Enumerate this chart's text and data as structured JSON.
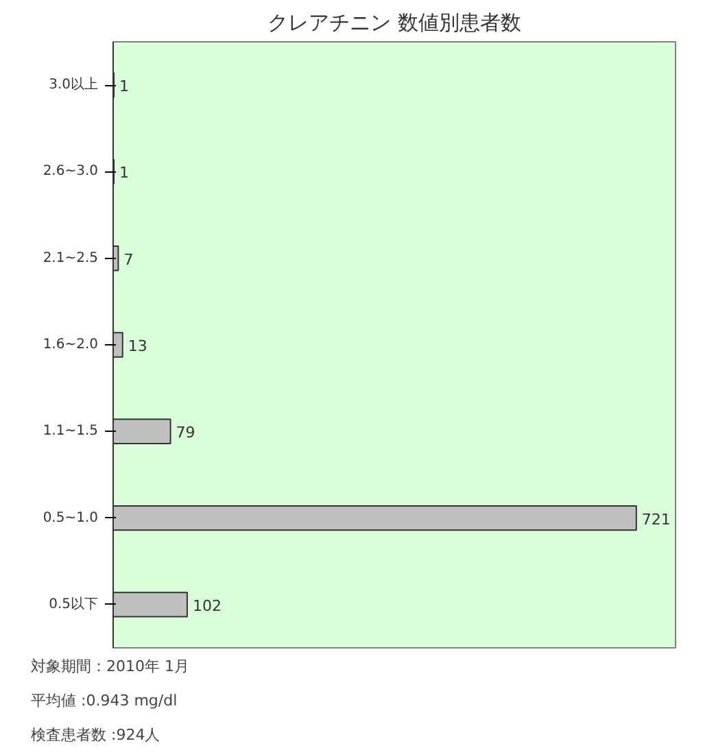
{
  "chart_data": {
    "type": "bar",
    "orientation": "horizontal",
    "title": "クレアチニン 数値別患者数",
    "categories": [
      "3.0以上",
      "2.6~3.0",
      "2.1~2.5",
      "1.6~2.0",
      "1.1~1.5",
      "0.5~1.0",
      "0.5以下"
    ],
    "values": [
      1,
      1,
      7,
      13,
      79,
      721,
      102
    ],
    "color": "#c0c0c0",
    "data_labels": true,
    "grid": false,
    "annotations": [
      "対象期間：2010年 1月",
      "平均値 :0.943 mg/dl",
      "検査患者数 :924人"
    ]
  }
}
